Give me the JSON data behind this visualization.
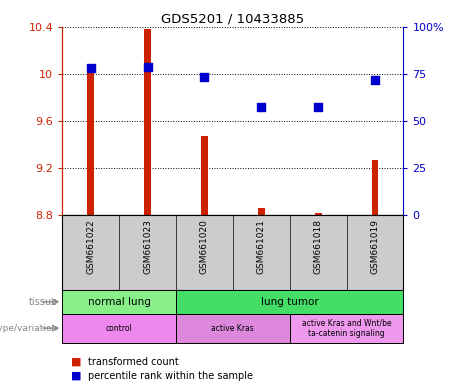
{
  "title": "GDS5201 / 10433885",
  "samples": [
    "GSM661022",
    "GSM661023",
    "GSM661020",
    "GSM661021",
    "GSM661018",
    "GSM661019"
  ],
  "bar_values": [
    10.07,
    10.38,
    9.47,
    8.86,
    8.82,
    9.27
  ],
  "bar_bottom": 8.8,
  "dot_values": [
    10.05,
    10.06,
    9.97,
    9.72,
    9.72,
    9.95
  ],
  "ylim_left": [
    8.8,
    10.4
  ],
  "ylim_right": [
    0,
    100
  ],
  "yticks_left": [
    8.8,
    9.2,
    9.6,
    10.0,
    10.4
  ],
  "yticks_right": [
    0,
    25,
    50,
    75,
    100
  ],
  "ytick_labels_left": [
    "8.8",
    "9.2",
    "9.6",
    "10",
    "10.4"
  ],
  "ytick_labels_right": [
    "0",
    "25",
    "50",
    "75",
    "100%"
  ],
  "bar_color": "#cc2200",
  "dot_color": "#0000cc",
  "tissue_labels": [
    {
      "label": "normal lung",
      "start": 0,
      "end": 1,
      "color": "#88ee88"
    },
    {
      "label": "lung tumor",
      "start": 2,
      "end": 5,
      "color": "#44dd66"
    }
  ],
  "genotype_labels": [
    {
      "label": "control",
      "start": 0,
      "end": 1,
      "color": "#ee88ee"
    },
    {
      "label": "active Kras",
      "start": 2,
      "end": 3,
      "color": "#dd88dd"
    },
    {
      "label": "active Kras and Wnt/be\nta-catenin signaling",
      "start": 4,
      "end": 5,
      "color": "#ee99ee"
    }
  ],
  "legend_items": [
    {
      "label": "transformed count",
      "color": "#cc2200"
    },
    {
      "label": "percentile rank within the sample",
      "color": "#0000cc"
    }
  ],
  "tissue_row_label": "tissue",
  "genotype_row_label": "genotype/variation",
  "sample_bg_color": "#cccccc",
  "bg_color": "#ffffff",
  "grid_color": "#000000",
  "bar_width": 0.12,
  "dot_size": 30
}
